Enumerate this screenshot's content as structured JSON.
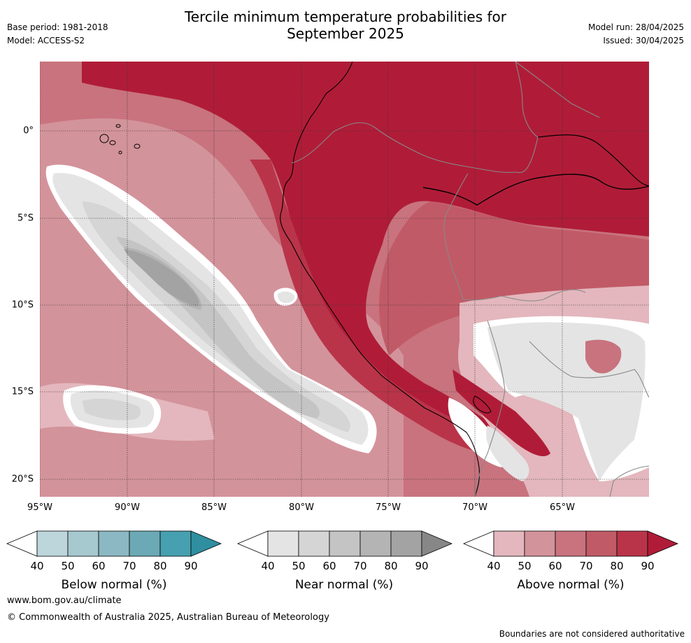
{
  "header": {
    "title_line1": "Tercile minimum temperature probabilities for",
    "title_line2": "September 2025",
    "base_period": "Base period: 1981-2018",
    "model": "Model: ACCESS-S2",
    "model_run": "Model run: 28/04/2025",
    "issued": "Issued: 30/04/2025"
  },
  "map": {
    "lat_ticks": [
      "0°",
      "5°S",
      "10°S",
      "15°S",
      "20°S"
    ],
    "lon_ticks": [
      "95°W",
      "90°W",
      "85°W",
      "80°W",
      "75°W",
      "70°W",
      "65°W"
    ],
    "region": "Western South America and eastern Pacific"
  },
  "colorbars": [
    {
      "name": "below",
      "label": "Below normal (%)",
      "ticks": [
        "40",
        "50",
        "60",
        "70",
        "80",
        "90"
      ],
      "colors": [
        "#ffffff",
        "#bdd6db",
        "#a6c8cf",
        "#8bb8c2",
        "#6aa9b5",
        "#46a0b0",
        "#2f8ea0"
      ]
    },
    {
      "name": "near",
      "label": "Near normal (%)",
      "ticks": [
        "40",
        "50",
        "60",
        "70",
        "80",
        "90"
      ],
      "colors": [
        "#ffffff",
        "#e4e4e4",
        "#d5d5d5",
        "#c4c4c4",
        "#b4b4b4",
        "#a3a3a3",
        "#878787"
      ]
    },
    {
      "name": "above",
      "label": "Above normal (%)",
      "ticks": [
        "40",
        "50",
        "60",
        "70",
        "80",
        "90"
      ],
      "colors": [
        "#ffffff",
        "#e3b7bd",
        "#d3939b",
        "#c8737e",
        "#c15a67",
        "#b93449",
        "#b01c38"
      ]
    }
  ],
  "footer": {
    "website": "www.bom.gov.au/climate",
    "copyright": "© Commonwealth of Australia 2025, Australian Bureau of Meteorology",
    "disclaimer": "Boundaries are not considered authoritative"
  }
}
